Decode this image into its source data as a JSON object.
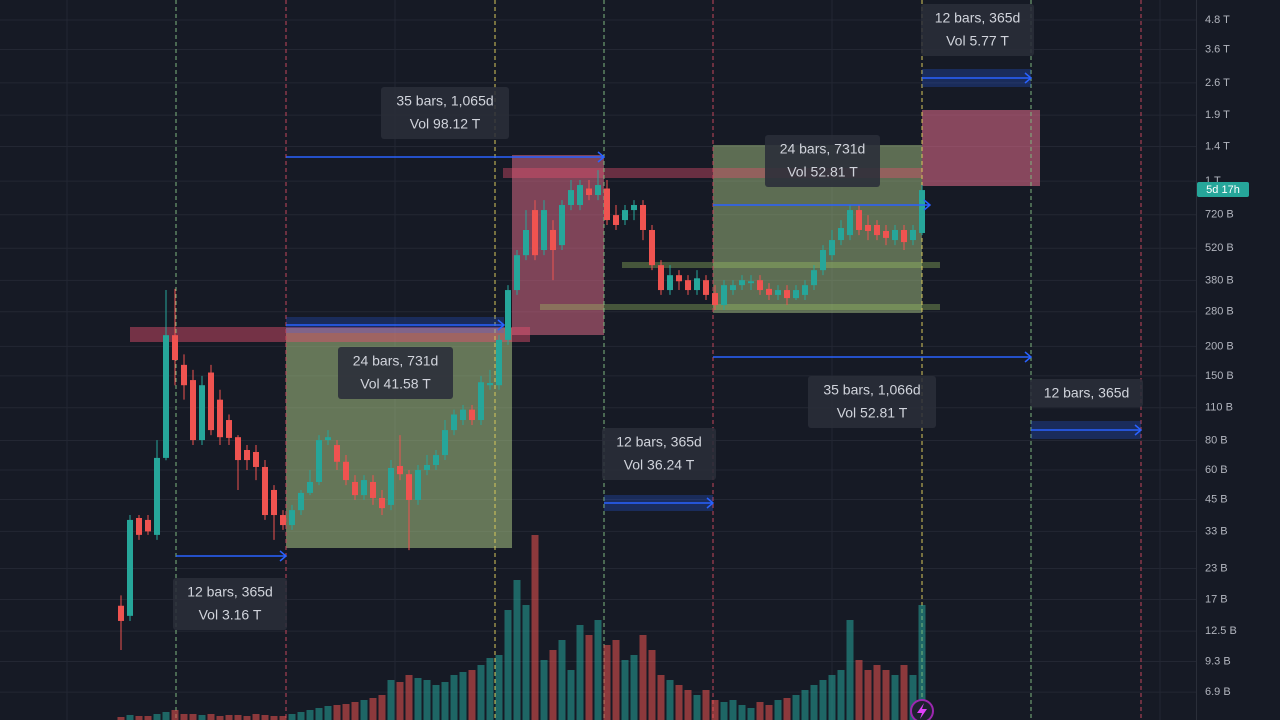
{
  "chart_data": {
    "type": "candlestick",
    "ylog": true,
    "grid": true,
    "ylim": [
      5.26,
      5830
    ],
    "yticks": [
      {
        "value": 4800,
        "label": "4.8 T"
      },
      {
        "value": 3600,
        "label": "3.6 T"
      },
      {
        "value": 2600,
        "label": "2.6 T"
      },
      {
        "value": 1900,
        "label": "1.9 T"
      },
      {
        "value": 1400,
        "label": "1.4 T"
      },
      {
        "value": 1000,
        "label": "1 T"
      },
      {
        "value": 720,
        "label": "720 B"
      },
      {
        "value": 520,
        "label": "520 B"
      },
      {
        "value": 380,
        "label": "380 B"
      },
      {
        "value": 280,
        "label": "280 B"
      },
      {
        "value": 200,
        "label": "200 B"
      },
      {
        "value": 150,
        "label": "150 B"
      },
      {
        "value": 110,
        "label": "110 B"
      },
      {
        "value": 80,
        "label": "80 B"
      },
      {
        "value": 60,
        "label": "60 B"
      },
      {
        "value": 45,
        "label": "45 B"
      },
      {
        "value": 33,
        "label": "33 B"
      },
      {
        "value": 23,
        "label": "23 B"
      },
      {
        "value": 17,
        "label": "17 B"
      },
      {
        "value": 12.5,
        "label": "12.5 B"
      },
      {
        "value": 9.3,
        "label": "9.3 B"
      },
      {
        "value": 6.9,
        "label": "6.9 B"
      }
    ],
    "up_color": "#26a69a",
    "down_color": "#ef5350",
    "candles": {
      "open": [
        16,
        14.5,
        37.6,
        36.9,
        31.9,
        67.5,
        223,
        167,
        144,
        80.3,
        155,
        119,
        97.6,
        82.6,
        72.9,
        71.5,
        61.8,
        49.4,
        38.7,
        35.1,
        40.6,
        48,
        53.4,
        80.3,
        76.5,
        65,
        53.4,
        47,
        53.4,
        45.7,
        42.7,
        62.4,
        57.6,
        44.8,
        60,
        63,
        69.4,
        88.5,
        97.6,
        108,
        97.6,
        137,
        137,
        213,
        346,
        486,
        754,
        511,
        621,
        536,
        792,
        792,
        930,
        873,
        930,
        718,
        684,
        754,
        792,
        621,
        441,
        346,
        400,
        381,
        346,
        381,
        336,
        299,
        346,
        363,
        370,
        381,
        350,
        330,
        346,
        320,
        330,
        363,
        420,
        486,
        563,
        591,
        754,
        652,
        652,
        615,
        563,
        621,
        563,
        603
      ],
      "high": [
        17.7,
        38.7,
        38.7,
        38.7,
        80.3,
        346,
        350,
        185,
        159,
        150,
        167,
        131,
        103,
        84.3,
        76.5,
        76.5,
        66.1,
        51.8,
        40.6,
        42.7,
        49.4,
        60,
        84.3,
        88.5,
        80.3,
        69.4,
        57.1,
        57.1,
        57.1,
        49.4,
        66.1,
        84.3,
        60,
        63,
        69.4,
        72.9,
        97.6,
        108,
        113,
        113,
        150,
        159,
        223,
        363,
        511,
        754,
        831,
        831,
        684,
        831,
        1010,
        1010,
        1010,
        1113,
        1010,
        792,
        792,
        831,
        831,
        652,
        463,
        441,
        420,
        400,
        420,
        400,
        363,
        381,
        381,
        400,
        400,
        400,
        370,
        363,
        363,
        363,
        381,
        441,
        536,
        621,
        684,
        792,
        792,
        718,
        684,
        652,
        652,
        652,
        652,
        962
      ],
      "low": [
        10.4,
        13.8,
        30.4,
        31.9,
        30.4,
        66,
        137,
        119,
        76.5,
        76.5,
        84.3,
        76.5,
        76.5,
        49.4,
        60,
        54.4,
        36.9,
        30.4,
        33.5,
        33.5,
        38.7,
        47,
        51.8,
        76.5,
        60,
        51.8,
        44.8,
        44.8,
        42.7,
        38.7,
        40.6,
        54.4,
        27.5,
        42.7,
        57.1,
        60,
        66.1,
        84.3,
        93,
        93,
        93,
        131,
        131,
        203,
        330,
        463,
        463,
        486,
        381,
        511,
        754,
        754,
        831,
        831,
        652,
        621,
        652,
        684,
        563,
        420,
        330,
        330,
        346,
        330,
        330,
        314,
        285,
        285,
        330,
        346,
        346,
        330,
        314,
        314,
        299,
        314,
        314,
        346,
        400,
        463,
        536,
        563,
        591,
        563,
        563,
        536,
        536,
        511,
        536,
        591
      ],
      "close": [
        13.8,
        36.9,
        31.9,
        33,
        67.5,
        223,
        175,
        137,
        80.3,
        137,
        88.5,
        82.6,
        82,
        66.1,
        66.1,
        61.8,
        38.7,
        38.7,
        35.1,
        40.6,
        48,
        53.4,
        80.3,
        82.6,
        65,
        54.4,
        47,
        54.4,
        45.7,
        41.4,
        61.2,
        57.6,
        44.8,
        60,
        63,
        69.4,
        88.5,
        103,
        108,
        97.6,
        141,
        140,
        213,
        346,
        486,
        621,
        486,
        754,
        511,
        792,
        916,
        962,
        873,
        962,
        684,
        652,
        754,
        792,
        621,
        441,
        346,
        400,
        377,
        346,
        388,
        330,
        299,
        363,
        363,
        381,
        377,
        346,
        330,
        346,
        320,
        346,
        363,
        420,
        511,
        563,
        633,
        754,
        621,
        615,
        591,
        575,
        621,
        552,
        621,
        916
      ]
    },
    "volume": {
      "ylim": [
        0,
        200
      ],
      "values": [
        3,
        5,
        4,
        4,
        6,
        8,
        10,
        6,
        6,
        5,
        6,
        4,
        5,
        5,
        4,
        6,
        5,
        4,
        4,
        6,
        8,
        10,
        12,
        14,
        15,
        16,
        18,
        20,
        22,
        25,
        40,
        38,
        45,
        42,
        40,
        35,
        38,
        45,
        48,
        50,
        55,
        62,
        65,
        110,
        140,
        115,
        185,
        60,
        70,
        80,
        50,
        95,
        85,
        100,
        75,
        80,
        60,
        65,
        85,
        70,
        45,
        40,
        35,
        30,
        25,
        30,
        20,
        18,
        20,
        15,
        12,
        18,
        15,
        20,
        22,
        25,
        30,
        35,
        40,
        45,
        50,
        100,
        60,
        50,
        55,
        50,
        45,
        55,
        45,
        115
      ]
    },
    "price_badge": "5d 17h",
    "annotations": [
      {
        "lines": [
          "12 bars, 365d",
          "Vol 3.16 T"
        ]
      },
      {
        "lines": [
          "35 bars, 1,065d",
          "Vol 98.12 T"
        ]
      },
      {
        "lines": [
          "24 bars, 731d",
          "Vol 41.58 T"
        ]
      },
      {
        "lines": [
          "24 bars, 731d",
          "Vol 52.81 T"
        ]
      },
      {
        "lines": [
          "12 bars, 365d",
          "Vol 36.24 T"
        ]
      },
      {
        "lines": [
          "35 bars, 1,066d",
          "Vol 52.81 T"
        ]
      },
      {
        "lines": [
          "12 bars, 365d",
          "Vol 5.77 T"
        ]
      },
      {
        "lines": [
          "12 bars, 365d"
        ]
      }
    ]
  }
}
